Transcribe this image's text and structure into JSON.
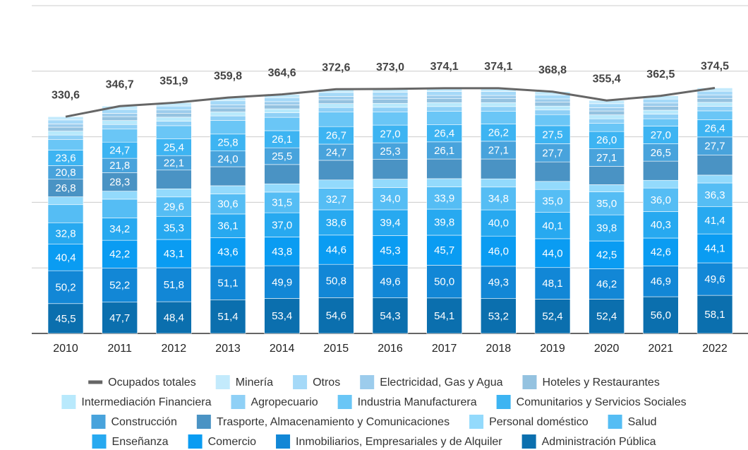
{
  "chart_data": {
    "type": "bar",
    "stacked": true,
    "categories": [
      "2010",
      "2011",
      "2012",
      "2013",
      "2014",
      "2015",
      "2016",
      "2017",
      "2018",
      "2019",
      "2020",
      "2021",
      "2022"
    ],
    "ylim": [
      0,
      500
    ],
    "yticks": [
      0,
      100,
      200,
      300,
      400,
      500
    ],
    "grid": true,
    "line": {
      "name": "Ocupados totales",
      "color": "#666666",
      "values": [
        330.6,
        346.7,
        351.9,
        359.8,
        364.6,
        372.6,
        373.0,
        374.1,
        374.1,
        368.8,
        355.4,
        362.5,
        374.5
      ],
      "value_labels": [
        "330,6",
        "346,7",
        "351,9",
        "359,8",
        "364,6",
        "372,6",
        "373,0",
        "374,1",
        "374,1",
        "368,8",
        "355,4",
        "362,5",
        "374,5"
      ]
    },
    "series": [
      {
        "name": "Administración Pública",
        "color": "#0b6fae",
        "values": [
          45.5,
          47.7,
          48.4,
          51.4,
          53.4,
          54.6,
          54.3,
          54.1,
          53.2,
          52.4,
          52.4,
          56.0,
          58.1
        ],
        "value_labels": [
          "45,5",
          "47,7",
          "48,4",
          "51,4",
          "53,4",
          "54,6",
          "54,3",
          "54,1",
          "53,2",
          "52,4",
          "52,4",
          "56,0",
          "58,1"
        ]
      },
      {
        "name": "Inmobiliarios, Empresariales y de Alquiler",
        "color": "#1287d6",
        "values": [
          50.2,
          52.2,
          51.8,
          51.1,
          49.9,
          50.8,
          49.6,
          50.0,
          49.3,
          48.1,
          46.2,
          46.9,
          49.6
        ],
        "value_labels": [
          "50,2",
          "52,2",
          "51,8",
          "51,1",
          "49,9",
          "50,8",
          "49,6",
          "50,0",
          "49,3",
          "48,1",
          "46,2",
          "46,9",
          "49,6"
        ]
      },
      {
        "name": "Comercio",
        "color": "#0a9cf2",
        "values": [
          40.4,
          42.2,
          43.1,
          43.6,
          43.8,
          44.6,
          45.3,
          45.7,
          46.0,
          44.0,
          42.5,
          42.6,
          44.1
        ],
        "value_labels": [
          "40,4",
          "42,2",
          "43,1",
          "43,6",
          "43,8",
          "44,6",
          "45,3",
          "45,7",
          "46,0",
          "44,0",
          "42,5",
          "42,6",
          "44,1"
        ]
      },
      {
        "name": "Enseñanza",
        "color": "#27a9f0",
        "values": [
          32.8,
          34.2,
          35.3,
          36.1,
          37.0,
          38.6,
          39.4,
          39.8,
          40.0,
          40.1,
          39.8,
          40.3,
          41.4
        ],
        "value_labels": [
          "32,8",
          "34,2",
          "35,3",
          "36,1",
          "37,0",
          "38,6",
          "39,4",
          "39,8",
          "40,0",
          "40,1",
          "39,8",
          "40,3",
          "41,4"
        ]
      },
      {
        "name": "Salud",
        "color": "#55bdf4",
        "values": [
          27.5,
          28.5,
          29.6,
          30.6,
          31.5,
          32.7,
          34.0,
          33.9,
          34.8,
          35.0,
          35.0,
          36.0,
          36.3
        ],
        "value_labels": [
          null,
          null,
          "29,6",
          "30,6",
          "31,5",
          "32,7",
          "34,0",
          "33,9",
          "34,8",
          "35,0",
          "35,0",
          "36,0",
          "36,3"
        ]
      },
      {
        "name": "Personal doméstico",
        "color": "#93dafc",
        "values": [
          12.0,
          12.2,
          12.4,
          12.5,
          12.6,
          12.8,
          12.7,
          12.6,
          12.5,
          12.3,
          11.0,
          11.8,
          12.0
        ]
      },
      {
        "name": "Trasporte, Almacenamiento y Comunicaciones",
        "color": "#4a93c4",
        "values": [
          26.8,
          28.3,
          28.6,
          29.0,
          29.5,
          30.0,
          30.2,
          30.0,
          30.3,
          29.8,
          28.0,
          29.2,
          30.5
        ],
        "value_labels": [
          "26,8",
          "28,3",
          null,
          null,
          null,
          null,
          null,
          null,
          null,
          null,
          null,
          null,
          null
        ]
      },
      {
        "name": "Construcción",
        "color": "#48a3dc",
        "values": [
          20.8,
          21.8,
          22.1,
          24.0,
          25.5,
          24.7,
          25.3,
          26.1,
          27.1,
          27.7,
          27.1,
          26.5,
          27.7
        ],
        "value_labels": [
          "20,8",
          "21,8",
          "22,1",
          "24,0",
          "25,5",
          "24,7",
          "25,3",
          "26,1",
          "27,1",
          "27,7",
          "27,1",
          "26,5",
          "27,7"
        ]
      },
      {
        "name": "Comunitarios y Servicios Sociales",
        "color": "#3db4f2",
        "values": [
          23.6,
          24.7,
          25.4,
          25.8,
          26.1,
          26.7,
          27.0,
          26.4,
          26.2,
          27.5,
          26.0,
          27.0,
          26.4
        ],
        "value_labels": [
          "23,6",
          "24,7",
          "25,4",
          "25,8",
          "26,1",
          "26,7",
          "27,0",
          "26,4",
          "26,2",
          "27,5",
          "26,0",
          "27,0",
          "26,4"
        ]
      },
      {
        "name": "Industria Manufacturera",
        "color": "#6ac6f6",
        "values": [
          16.0,
          19.9,
          20.2,
          20.7,
          20.3,
          22.1,
          20.2,
          20.5,
          19.7,
          16.9,
          12.4,
          11.2,
          13.4
        ]
      },
      {
        "name": "Agropecuario",
        "color": "#8fd0f6",
        "values": [
          7,
          7,
          7,
          7,
          7,
          7,
          7,
          7,
          7,
          7,
          7,
          7,
          7
        ]
      },
      {
        "name": "Intermediación Financiera",
        "color": "#b8e9fc",
        "values": [
          6,
          6,
          6,
          6,
          6,
          6,
          6,
          6,
          6,
          6,
          6,
          6,
          6
        ]
      },
      {
        "name": "Hoteles y Restaurantes",
        "color": "#94c2e0",
        "values": [
          6,
          6,
          6,
          6,
          6,
          6,
          6,
          6,
          6,
          6,
          6,
          6,
          6
        ]
      },
      {
        "name": "Electricidad, Gas y Agua",
        "color": "#9cccec",
        "values": [
          5,
          5,
          5,
          5,
          5,
          5,
          5,
          5,
          5,
          5,
          5,
          5,
          5
        ]
      },
      {
        "name": "Otros",
        "color": "#a5d9f8",
        "values": [
          6,
          6,
          6,
          6,
          6,
          6,
          6,
          6,
          6,
          6,
          6,
          6,
          6
        ]
      },
      {
        "name": "Minería",
        "color": "#c3eafc",
        "values": [
          5,
          5,
          5,
          5,
          5,
          5,
          5,
          5,
          5,
          5,
          5,
          5,
          5
        ]
      }
    ]
  }
}
